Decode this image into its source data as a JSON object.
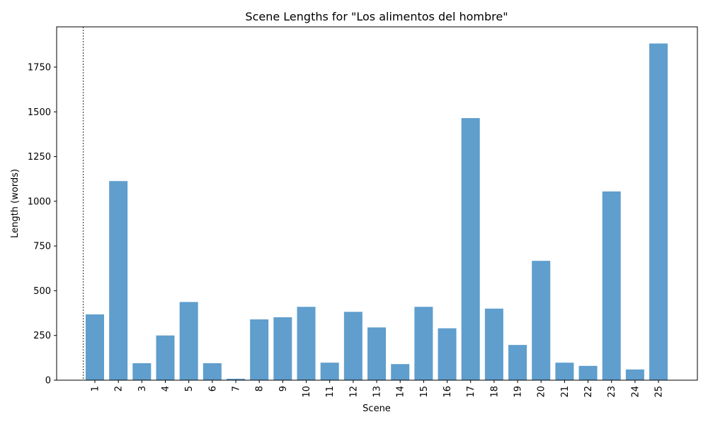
{
  "chart_data": {
    "type": "bar",
    "title": "Scene Lengths for \"Los alimentos del hombre\"",
    "xlabel": "Scene",
    "ylabel": "Length (words)",
    "categories": [
      "1",
      "2",
      "3",
      "4",
      "5",
      "6",
      "7",
      "8",
      "9",
      "10",
      "11",
      "12",
      "13",
      "14",
      "15",
      "16",
      "17",
      "18",
      "19",
      "20",
      "21",
      "22",
      "23",
      "24",
      "25"
    ],
    "values": [
      368,
      1113,
      95,
      250,
      437,
      95,
      8,
      340,
      352,
      410,
      98,
      382,
      295,
      90,
      410,
      290,
      1465,
      400,
      197,
      667,
      98,
      80,
      1055,
      60,
      1882
    ],
    "ylim": [
      0,
      1975
    ],
    "yticks": [
      0,
      250,
      500,
      750,
      1000,
      1250,
      1500,
      1750
    ],
    "bar_color": "#5f9ecd",
    "grid": false,
    "marker_line": "dashed vertical line before scene 1"
  }
}
